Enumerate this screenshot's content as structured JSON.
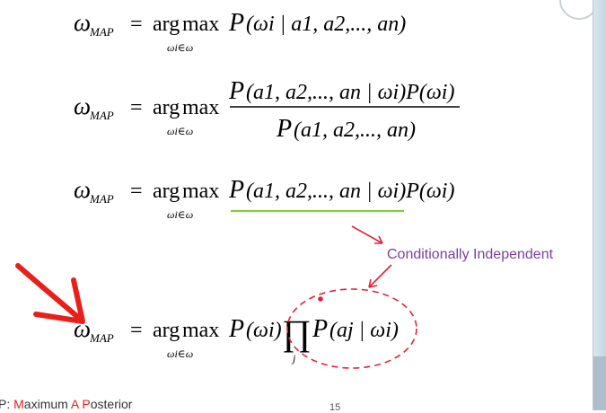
{
  "equations": {
    "lhs_symbol": "ω",
    "lhs_sub": "MAP",
    "equals": "=",
    "arg": "arg",
    "max": "max",
    "under": "ωi∈ω",
    "P": "P",
    "eq1_arg": "(ωi | a1, a2,..., an)",
    "eq2_num": "(a1, a2,..., an | ωi)P(ωi)",
    "eq2_den": "(a1, a2,..., an)",
    "eq3_arg": "(a1, a2,..., an | ωi)P(ωi)",
    "eq4_first": "(ωi)",
    "product": "∏",
    "product_sub": "j",
    "eq4_second": "(aj | ωi)"
  },
  "annotation": {
    "label": "Conditionally Independent",
    "label_color": "#7b3f9e",
    "arrow_color": "#e0223a",
    "underline_color": "#8dc63f",
    "big_arrow_color": "#e8201c"
  },
  "footer": {
    "prefix": "P: ",
    "m": "M",
    "maximum_rest": "aximum ",
    "a": "A",
    "space": " ",
    "p": "P",
    "posterior_rest": "osterior"
  },
  "page_number": "15"
}
